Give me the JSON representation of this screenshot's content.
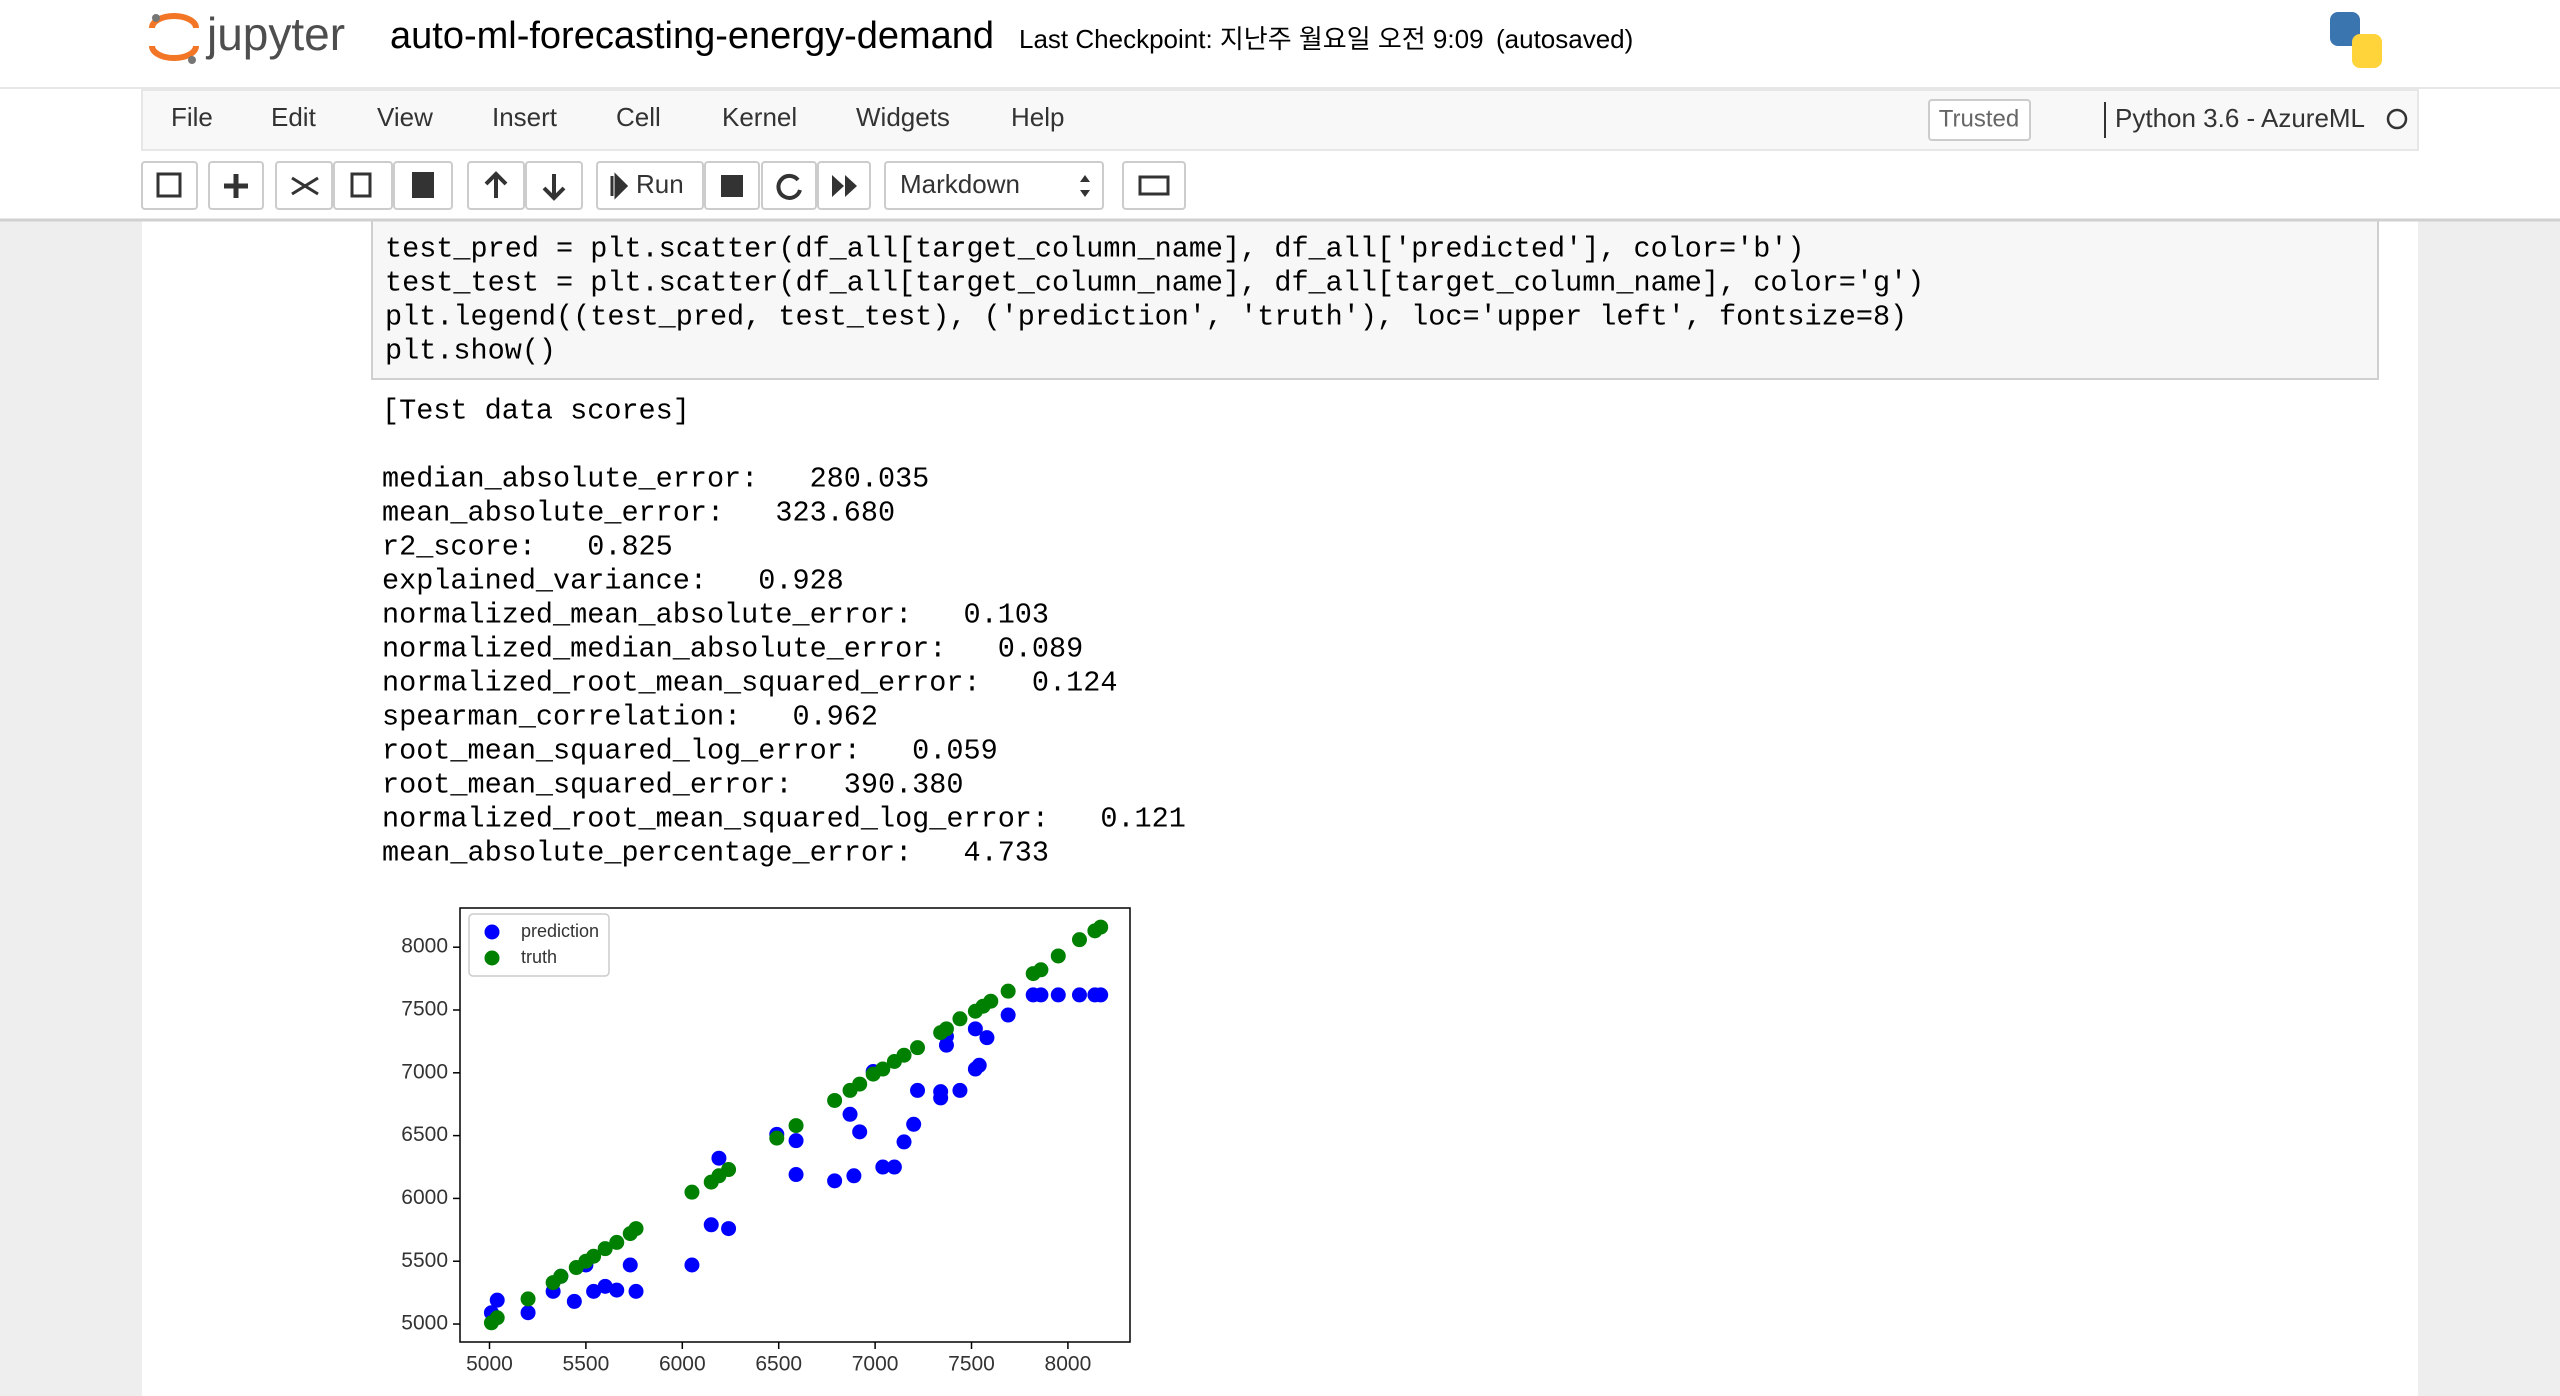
{
  "header": {
    "logo_text": "jupyter",
    "notebook_title": "auto-ml-forecasting-energy-demand",
    "checkpoint": "Last Checkpoint: 지난주 월요일 오전 9:09",
    "autosaved": "(autosaved)"
  },
  "menu": {
    "items": [
      "File",
      "Edit",
      "View",
      "Insert",
      "Cell",
      "Kernel",
      "Widgets",
      "Help"
    ],
    "trusted": "Trusted",
    "kernel": "Python 3.6 - AzureML"
  },
  "toolbar": {
    "run": "Run",
    "cell_type": "Markdown"
  },
  "code": {
    "lines": [
      "test_pred = plt.scatter(df_all[target_column_name], df_all['predicted'], color='b')",
      "test_test = plt.scatter(df_all[target_column_name], df_all[target_column_name], color='g')",
      "plt.legend((test_pred, test_test), ('prediction', 'truth'), loc='upper left', fontsize=8)",
      "plt.show()"
    ]
  },
  "output": {
    "heading": "[Test data scores]",
    "lines": [
      "median_absolute_error:   280.035",
      "mean_absolute_error:   323.680",
      "r2_score:   0.825",
      "explained_variance:   0.928",
      "normalized_mean_absolute_error:   0.103",
      "normalized_median_absolute_error:   0.089",
      "normalized_root_mean_squared_error:   0.124",
      "spearman_correlation:   0.962",
      "root_mean_squared_log_error:   0.059",
      "root_mean_squared_error:   390.380",
      "normalized_root_mean_squared_log_error:   0.121",
      "mean_absolute_percentage_error:   4.733"
    ]
  },
  "chart_data": {
    "type": "scatter",
    "legend": "upper left",
    "xlim": [
      4847,
      8322
    ],
    "ylim": [
      4857,
      8312
    ],
    "xticks": [
      5000,
      5500,
      6000,
      6500,
      7000,
      7500,
      8000
    ],
    "yticks": [
      5000,
      5500,
      6000,
      6500,
      7000,
      7500,
      8000
    ],
    "series": [
      {
        "name": "prediction",
        "color": "#0000ff",
        "x": [
          5010,
          5040,
          5200,
          5330,
          5370,
          5440,
          5500,
          5540,
          5600,
          5660,
          5730,
          5760,
          6050,
          6150,
          6190,
          6240,
          6490,
          6590,
          6590,
          6790,
          6870,
          6890,
          6920,
          6990,
          7040,
          7100,
          7150,
          7200,
          7220,
          7340,
          7340,
          7370,
          7370,
          7440,
          7520,
          7540,
          7520,
          7580,
          7690,
          7820,
          7860,
          7950,
          8060,
          8140,
          8170
        ],
        "y": [
          5090,
          5190,
          5090,
          5260,
          5380,
          5180,
          5470,
          5260,
          5300,
          5270,
          5470,
          5260,
          5470,
          5790,
          6320,
          5760,
          6510,
          6460,
          6190,
          6140,
          6670,
          6180,
          6530,
          7010,
          6250,
          6250,
          6450,
          6590,
          6860,
          6850,
          6800,
          7220,
          7290,
          6860,
          7030,
          7060,
          7350,
          7280,
          7460,
          7620,
          7620,
          7620,
          7620,
          7620,
          7620
        ]
      },
      {
        "name": "truth",
        "color": "#008000",
        "x": [
          5010,
          5040,
          5200,
          5330,
          5370,
          5450,
          5500,
          5540,
          5600,
          5660,
          5730,
          5760,
          6050,
          6150,
          6190,
          6240,
          6490,
          6590,
          6790,
          6870,
          6920,
          6990,
          7040,
          7100,
          7150,
          7220,
          7340,
          7370,
          7440,
          7520,
          7560,
          7600,
          7690,
          7820,
          7860,
          7950,
          8060,
          8140,
          8170
        ],
        "y": [
          5010,
          5050,
          5200,
          5330,
          5380,
          5450,
          5500,
          5540,
          5600,
          5650,
          5720,
          5760,
          6050,
          6130,
          6180,
          6230,
          6480,
          6580,
          6780,
          6860,
          6910,
          6990,
          7030,
          7090,
          7140,
          7200,
          7320,
          7350,
          7430,
          7490,
          7530,
          7570,
          7650,
          7790,
          7820,
          7930,
          8060,
          8130,
          8160
        ]
      }
    ]
  }
}
